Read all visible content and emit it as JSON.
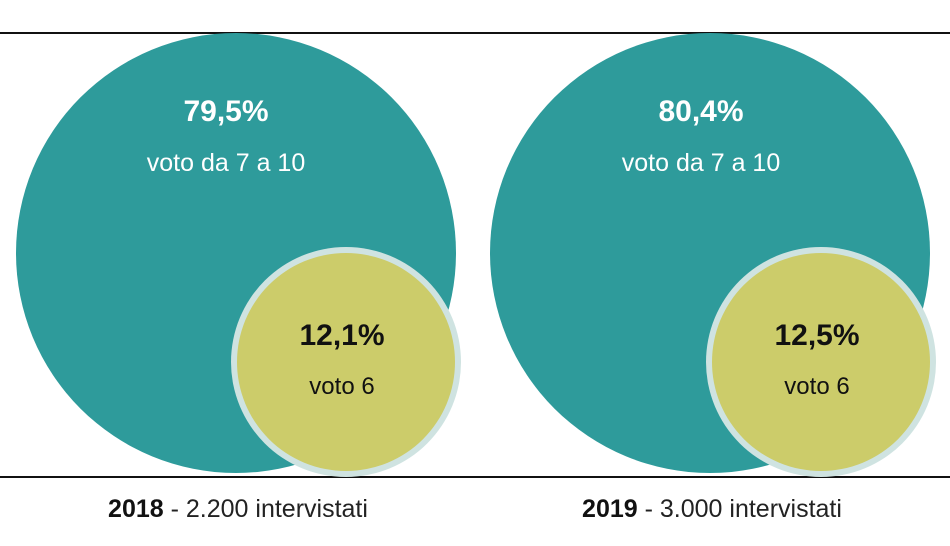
{
  "chart_data": [
    {
      "type": "bubble",
      "year": "2018",
      "caption_rest": " - 2.200 intervistati",
      "segments": [
        {
          "pct_label": "79,5%",
          "label": "voto da 7 a 10",
          "value": 79.5,
          "color": "#2e9b9b"
        },
        {
          "pct_label": "12,1%",
          "label": "voto 6",
          "value": 12.1,
          "color": "#cccc6a"
        }
      ]
    },
    {
      "type": "bubble",
      "year": "2019",
      "caption_rest": " - 3.000 intervistati",
      "segments": [
        {
          "pct_label": "80,4%",
          "label": "voto da 7 a 10",
          "value": 80.4,
          "color": "#2e9b9b"
        },
        {
          "pct_label": "12,5%",
          "label": "voto 6",
          "value": 12.5,
          "color": "#cccc6a"
        }
      ]
    }
  ],
  "colors": {
    "ring": "#cfe3e1",
    "rule": "#111111"
  }
}
